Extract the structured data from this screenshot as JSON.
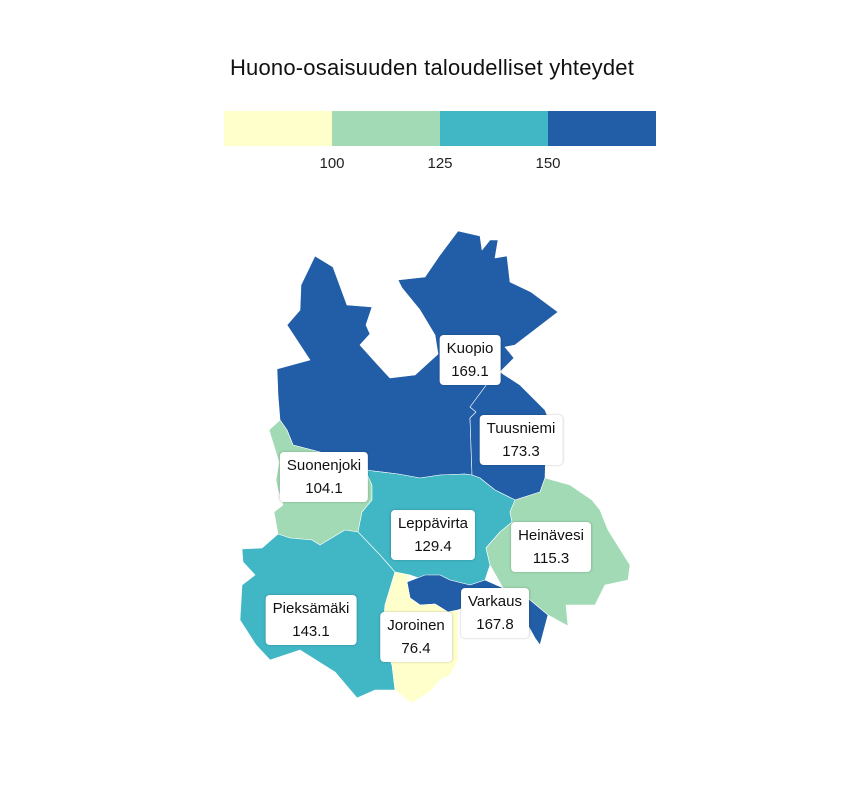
{
  "title": "Huono-osaisuuden taloudelliset yhteydet",
  "legend": {
    "classes": [
      {
        "color": "#ffffcc"
      },
      {
        "color": "#a1dab4"
      },
      {
        "color": "#41b6c4"
      },
      {
        "color": "#225ea8"
      }
    ],
    "breaks": [
      "100",
      "125",
      "150"
    ]
  },
  "regions": [
    {
      "name": "Kuopio",
      "value": "169.1",
      "color": "#225ea8"
    },
    {
      "name": "Tuusniemi",
      "value": "173.3",
      "color": "#225ea8"
    },
    {
      "name": "Suonenjoki",
      "value": "104.1",
      "color": "#a1dab4"
    },
    {
      "name": "Leppävirta",
      "value": "129.4",
      "color": "#41b6c4"
    },
    {
      "name": "Heinävesi",
      "value": "115.3",
      "color": "#a1dab4"
    },
    {
      "name": "Varkaus",
      "value": "167.8",
      "color": "#225ea8"
    },
    {
      "name": "Pieksämäki",
      "value": "143.1",
      "color": "#41b6c4"
    },
    {
      "name": "Joroinen",
      "value": "76.4",
      "color": "#ffffcc"
    }
  ]
}
